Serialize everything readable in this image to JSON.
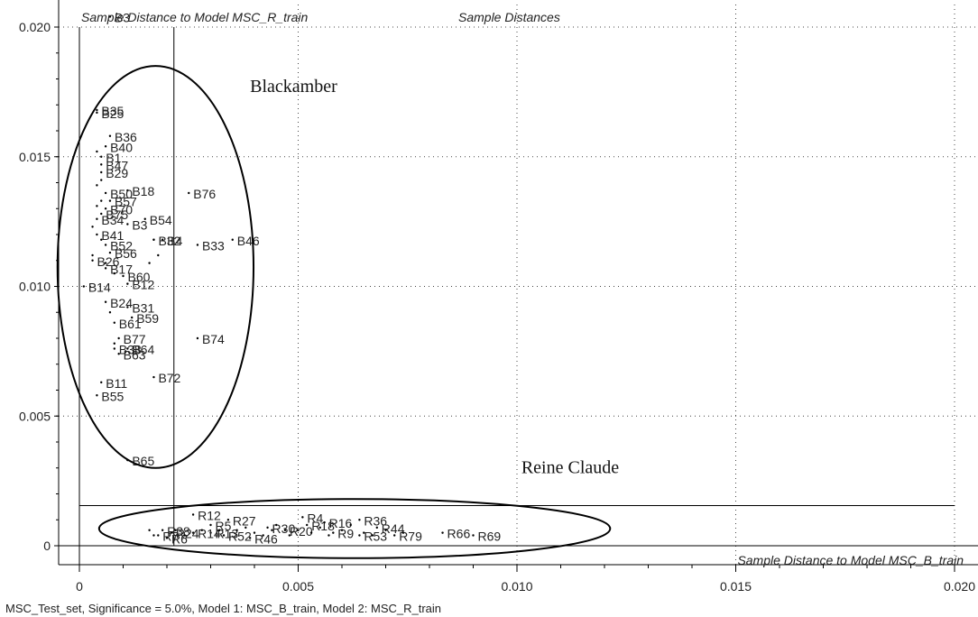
{
  "chart_data": {
    "type": "scatter",
    "title": "Sample Distances",
    "xlabel": "Sample Distance to Model MSC_B_train",
    "ylabel": "Sample Distance to Model MSC_R_train",
    "xlim": [
      -0.0005,
      0.0202
    ],
    "ylim": [
      -0.0004,
      0.0205
    ],
    "x_ticks": [
      {
        "v": 0,
        "label": "0"
      },
      {
        "v": 0.005,
        "label": "0.005"
      },
      {
        "v": 0.01,
        "label": "0.010"
      },
      {
        "v": 0.015,
        "label": "0.015"
      },
      {
        "v": 0.02,
        "label": "0.020"
      }
    ],
    "y_ticks": [
      {
        "v": 0,
        "label": "0"
      },
      {
        "v": 0.005,
        "label": "0.005"
      },
      {
        "v": 0.01,
        "label": "0.010"
      },
      {
        "v": 0.015,
        "label": "0.015"
      },
      {
        "v": 0.02,
        "label": "0.020"
      }
    ],
    "x_critical_limit": 0.00216,
    "y_critical_limit": 0.00155,
    "grid": true,
    "footer": "MSC_Test_set, Significance = 5.0%, Model 1: MSC_B_train, Model 2: MSC_R_train",
    "annotations": [
      {
        "text": "Blackamber",
        "x": 0.0039,
        "y": 0.0175
      },
      {
        "text": "Reine Claude",
        "x": 0.0101,
        "y": 0.0028
      }
    ],
    "ellipses": [
      {
        "cx": 0.00174,
        "cy": 0.01075,
        "rx": 0.00224,
        "ry": 0.00775
      },
      {
        "cx": 0.00629,
        "cy": 0.00066,
        "rx": 0.00584,
        "ry": 0.00114
      }
    ],
    "points": [
      {
        "label": "B3",
        "x": 0.0007,
        "y": 0.0204
      },
      {
        "label": "B35",
        "x": 0.0004,
        "y": 0.0168
      },
      {
        "label": "B25",
        "x": 0.0004,
        "y": 0.0167
      },
      {
        "label": "B36",
        "x": 0.0007,
        "y": 0.0158
      },
      {
        "label": "B40",
        "x": 0.0006,
        "y": 0.0154
      },
      {
        "label": "B1",
        "x": 0.0005,
        "y": 0.015
      },
      {
        "label": "B47",
        "x": 0.0005,
        "y": 0.0147
      },
      {
        "label": "B29",
        "x": 0.0005,
        "y": 0.0144
      },
      {
        "label": "B18",
        "x": 0.0011,
        "y": 0.0137
      },
      {
        "label": "B50",
        "x": 0.0006,
        "y": 0.0136
      },
      {
        "label": "B57",
        "x": 0.0007,
        "y": 0.0133
      },
      {
        "label": "B70",
        "x": 0.0006,
        "y": 0.013
      },
      {
        "label": "B76",
        "x": 0.0025,
        "y": 0.0136
      },
      {
        "label": "B75",
        "x": 0.0005,
        "y": 0.0128
      },
      {
        "label": "B34",
        "x": 0.0004,
        "y": 0.0126
      },
      {
        "label": "B54",
        "x": 0.0015,
        "y": 0.0126
      },
      {
        "label": "B3",
        "x": 0.0011,
        "y": 0.0124
      },
      {
        "label": "B32",
        "x": 0.0017,
        "y": 0.0118
      },
      {
        "label": "B4",
        "x": 0.0019,
        "y": 0.0118
      },
      {
        "label": "B33",
        "x": 0.0027,
        "y": 0.0116
      },
      {
        "label": "B46",
        "x": 0.0035,
        "y": 0.0118
      },
      {
        "label": "B41",
        "x": 0.0004,
        "y": 0.012
      },
      {
        "label": "B52",
        "x": 0.0006,
        "y": 0.0116
      },
      {
        "label": "B56",
        "x": 0.0007,
        "y": 0.0113
      },
      {
        "label": "B26",
        "x": 0.0003,
        "y": 0.011
      },
      {
        "label": "B17",
        "x": 0.0006,
        "y": 0.0107
      },
      {
        "label": "B60",
        "x": 0.001,
        "y": 0.0104
      },
      {
        "label": "B12",
        "x": 0.0011,
        "y": 0.0101
      },
      {
        "label": "B14",
        "x": 0.0001,
        "y": 0.01
      },
      {
        "label": "B24",
        "x": 0.0006,
        "y": 0.0094
      },
      {
        "label": "B31",
        "x": 0.0011,
        "y": 0.0092
      },
      {
        "label": "B59",
        "x": 0.0012,
        "y": 0.0088
      },
      {
        "label": "B61",
        "x": 0.0008,
        "y": 0.0086
      },
      {
        "label": "B74",
        "x": 0.0027,
        "y": 0.008
      },
      {
        "label": "B77",
        "x": 0.0009,
        "y": 0.008
      },
      {
        "label": "B38",
        "x": 0.0008,
        "y": 0.0076
      },
      {
        "label": "B64",
        "x": 0.0011,
        "y": 0.0076
      },
      {
        "label": "B63",
        "x": 0.0009,
        "y": 0.0074
      },
      {
        "label": "B72",
        "x": 0.0017,
        "y": 0.0065
      },
      {
        "label": "B11",
        "x": 0.0005,
        "y": 0.0063
      },
      {
        "label": "B55",
        "x": 0.0004,
        "y": 0.0058
      },
      {
        "label": "B65",
        "x": 0.0011,
        "y": 0.0033
      },
      {
        "label": "R12",
        "x": 0.0026,
        "y": 0.0012
      },
      {
        "label": "R27",
        "x": 0.0034,
        "y": 0.001
      },
      {
        "label": "R5",
        "x": 0.003,
        "y": 0.0008
      },
      {
        "label": "R4",
        "x": 0.0051,
        "y": 0.0011
      },
      {
        "label": "R36",
        "x": 0.0064,
        "y": 0.001
      },
      {
        "label": "R44",
        "x": 0.0068,
        "y": 0.0007
      },
      {
        "label": "R66",
        "x": 0.0083,
        "y": 0.0005
      },
      {
        "label": "R69",
        "x": 0.009,
        "y": 0.0004
      },
      {
        "label": "R79",
        "x": 0.0072,
        "y": 0.0004
      },
      {
        "label": "R53",
        "x": 0.0064,
        "y": 0.0004
      },
      {
        "label": "R46",
        "x": 0.0039,
        "y": 0.0003
      },
      {
        "label": "R52",
        "x": 0.0033,
        "y": 0.0004
      },
      {
        "label": "R13",
        "x": 0.003,
        "y": 0.0005
      },
      {
        "label": "R14",
        "x": 0.0026,
        "y": 0.0005
      },
      {
        "label": "R38",
        "x": 0.0019,
        "y": 0.0006
      },
      {
        "label": "R24",
        "x": 0.0021,
        "y": 0.0005
      },
      {
        "label": "R6",
        "x": 0.002,
        "y": 0.0003
      },
      {
        "label": "R7",
        "x": 0.0018,
        "y": 0.0004
      },
      {
        "label": "R20",
        "x": 0.0047,
        "y": 0.0006
      },
      {
        "label": "R18",
        "x": 0.0052,
        "y": 0.0008
      },
      {
        "label": "R9",
        "x": 0.0058,
        "y": 0.0005
      },
      {
        "label": "R30",
        "x": 0.0043,
        "y": 0.0007
      },
      {
        "label": "R16",
        "x": 0.0056,
        "y": 0.0009
      }
    ],
    "unlabeled_points": [
      {
        "x": 0.0004,
        "y": 0.0152
      },
      {
        "x": 0.0005,
        "y": 0.0141
      },
      {
        "x": 0.0004,
        "y": 0.0139
      },
      {
        "x": 0.0005,
        "y": 0.0133
      },
      {
        "x": 0.0004,
        "y": 0.0131
      },
      {
        "x": 0.0003,
        "y": 0.0123
      },
      {
        "x": 0.0005,
        "y": 0.0118
      },
      {
        "x": 0.0003,
        "y": 0.0112
      },
      {
        "x": 0.0006,
        "y": 0.0109
      },
      {
        "x": 0.0008,
        "y": 0.0105
      },
      {
        "x": 0.0016,
        "y": 0.0109
      },
      {
        "x": 0.0017,
        "y": 0.0118
      },
      {
        "x": 0.0018,
        "y": 0.0112
      },
      {
        "x": 0.0007,
        "y": 0.009
      },
      {
        "x": 0.0008,
        "y": 0.0078
      },
      {
        "x": 0.0016,
        "y": 0.0006
      },
      {
        "x": 0.0017,
        "y": 0.0004
      },
      {
        "x": 0.0022,
        "y": 0.0006
      },
      {
        "x": 0.0024,
        "y": 0.0004
      },
      {
        "x": 0.0028,
        "y": 0.0006
      },
      {
        "x": 0.0032,
        "y": 0.0006
      },
      {
        "x": 0.0036,
        "y": 0.0006
      },
      {
        "x": 0.0038,
        "y": 0.0007
      },
      {
        "x": 0.004,
        "y": 0.0005
      },
      {
        "x": 0.0042,
        "y": 0.0004
      },
      {
        "x": 0.0044,
        "y": 0.0006
      },
      {
        "x": 0.0045,
        "y": 0.0008
      },
      {
        "x": 0.0048,
        "y": 0.0004
      },
      {
        "x": 0.005,
        "y": 0.0006
      },
      {
        "x": 0.0053,
        "y": 0.0005
      },
      {
        "x": 0.0055,
        "y": 0.0007
      },
      {
        "x": 0.0057,
        "y": 0.0004
      },
      {
        "x": 0.006,
        "y": 0.0006
      },
      {
        "x": 0.0062,
        "y": 0.0008
      },
      {
        "x": 0.0065,
        "y": 0.0005
      },
      {
        "x": 0.0067,
        "y": 0.0004
      },
      {
        "x": 0.007,
        "y": 0.0006
      },
      {
        "x": 0.0074,
        "y": 0.0005
      }
    ]
  }
}
